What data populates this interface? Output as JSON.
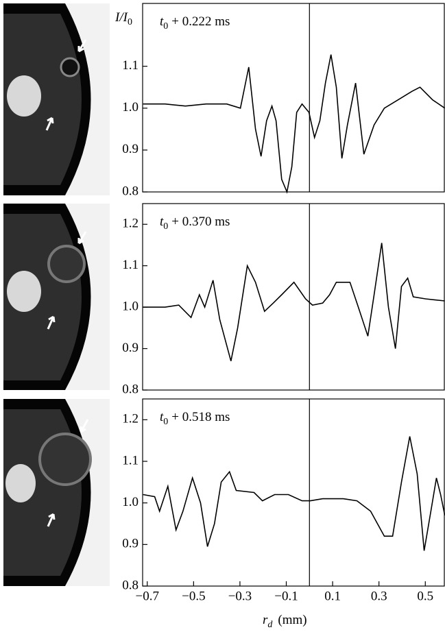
{
  "chart_data": [
    {
      "type": "line",
      "annotation": {
        "symbol": "t",
        "subscript": "0",
        "text": "+ 0.222 ms"
      },
      "y_label": {
        "symbol": "I/I",
        "subscript": "0"
      },
      "xlim": [
        -0.72,
        0.585
      ],
      "ylim": [
        0.8,
        1.25
      ],
      "yticks": [
        0.8,
        0.9,
        {
          "value": 1,
          "label": "1.0"
        },
        1.1
      ],
      "reference_x": 0,
      "color": "#000000",
      "x": [
        -0.718,
        -0.623,
        -0.535,
        -0.446,
        -0.357,
        -0.298,
        -0.262,
        -0.233,
        -0.209,
        -0.185,
        -0.162,
        -0.144,
        -0.12,
        -0.097,
        -0.076,
        -0.055,
        -0.032,
        -0.002,
        0.022,
        0.045,
        0.069,
        0.093,
        0.116,
        0.14,
        0.164,
        0.199,
        0.235,
        0.279,
        0.323,
        0.383,
        0.442,
        0.477,
        0.531,
        0.584
      ],
      "values": [
        1.01,
        1.01,
        1.005,
        1.01,
        1.01,
        1.0,
        1.098,
        0.95,
        0.885,
        0.97,
        1.005,
        0.97,
        0.83,
        0.8,
        0.86,
        0.99,
        1.01,
        0.99,
        0.93,
        0.97,
        1.06,
        1.128,
        1.05,
        0.88,
        0.96,
        1.06,
        0.89,
        0.96,
        1.0,
        1.02,
        1.04,
        1.05,
        1.02,
        1.0
      ]
    },
    {
      "type": "line",
      "annotation": {
        "symbol": "t",
        "subscript": "0",
        "text": "+ 0.370 ms"
      },
      "xlim": [
        -0.72,
        0.585
      ],
      "ylim": [
        0.8,
        1.25
      ],
      "yticks": [
        0.8,
        0.9,
        {
          "value": 1,
          "label": "1.0"
        },
        1.1,
        1.2
      ],
      "reference_x": 0,
      "color": "#000000",
      "x": [
        -0.718,
        -0.623,
        -0.564,
        -0.511,
        -0.475,
        -0.452,
        -0.416,
        -0.387,
        -0.339,
        -0.31,
        -0.268,
        -0.233,
        -0.194,
        -0.156,
        -0.12,
        -0.067,
        -0.017,
        0.013,
        0.057,
        0.087,
        0.116,
        0.175,
        0.211,
        0.252,
        0.279,
        0.312,
        0.341,
        0.371,
        0.397,
        0.424,
        0.448,
        0.501,
        0.584
      ],
      "values": [
        1.0,
        1.0,
        1.005,
        0.975,
        1.03,
        1.0,
        1.065,
        0.97,
        0.87,
        0.95,
        1.1,
        1.06,
        0.99,
        1.01,
        1.03,
        1.06,
        1.02,
        1.005,
        1.01,
        1.03,
        1.06,
        1.06,
        1.0,
        0.93,
        1.03,
        1.155,
        1.0,
        0.9,
        1.05,
        1.07,
        1.025,
        1.02,
        1.015
      ]
    },
    {
      "type": "line",
      "annotation": {
        "symbol": "t",
        "subscript": "0",
        "text": "+ 0.518 ms"
      },
      "x_label": {
        "symbol": "r",
        "subscript": "d",
        "text": "(mm)"
      },
      "xlim": [
        -0.72,
        0.585
      ],
      "ylim": [
        0.8,
        1.25
      ],
      "yticks": [
        0.8,
        0.9,
        {
          "value": 1,
          "label": "1.0"
        },
        1.1,
        1.2
      ],
      "xticks": [
        {
          "value": -0.7,
          "label": "−0.7"
        },
        {
          "value": -0.5,
          "label": "−0.5"
        },
        {
          "value": -0.3,
          "label": "−0.3"
        },
        {
          "value": -0.1,
          "label": "−0.1"
        },
        0.1,
        0.3,
        0.5
      ],
      "reference_x": 0,
      "color": "#000000",
      "x": [
        -0.718,
        -0.668,
        -0.647,
        -0.611,
        -0.576,
        -0.546,
        -0.505,
        -0.47,
        -0.44,
        -0.41,
        -0.381,
        -0.345,
        -0.316,
        -0.239,
        -0.203,
        -0.15,
        -0.091,
        -0.032,
        0.004,
        0.057,
        0.146,
        0.205,
        0.264,
        0.323,
        0.359,
        0.397,
        0.433,
        0.465,
        0.495,
        0.524,
        0.548,
        0.566,
        0.584
      ],
      "values": [
        1.02,
        1.015,
        0.98,
        1.04,
        0.935,
        0.98,
        1.06,
        1.0,
        0.895,
        0.95,
        1.05,
        1.075,
        1.03,
        1.025,
        1.005,
        1.02,
        1.02,
        1.005,
        1.005,
        1.01,
        1.01,
        1.005,
        0.98,
        0.92,
        0.92,
        1.05,
        1.16,
        1.07,
        0.885,
        0.98,
        1.06,
        1.02,
        0.97
      ]
    }
  ]
}
